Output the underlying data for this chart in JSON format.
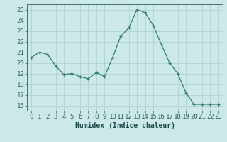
{
  "x": [
    0,
    1,
    2,
    3,
    4,
    5,
    6,
    7,
    8,
    9,
    10,
    11,
    12,
    13,
    14,
    15,
    16,
    17,
    18,
    19,
    20,
    21,
    22,
    23
  ],
  "y": [
    20.5,
    21.0,
    20.8,
    19.7,
    18.9,
    19.0,
    18.7,
    18.5,
    19.1,
    18.7,
    20.5,
    22.5,
    23.3,
    25.0,
    24.7,
    23.5,
    21.7,
    20.0,
    19.0,
    17.2,
    16.1,
    16.1,
    16.1,
    16.1
  ],
  "ylim": [
    15.5,
    25.5
  ],
  "yticks": [
    16,
    17,
    18,
    19,
    20,
    21,
    22,
    23,
    24,
    25
  ],
  "xticks": [
    0,
    1,
    2,
    3,
    4,
    5,
    6,
    7,
    8,
    9,
    10,
    11,
    12,
    13,
    14,
    15,
    16,
    17,
    18,
    19,
    20,
    21,
    22,
    23
  ],
  "xlabel": "Humidex (Indice chaleur)",
  "line_color": "#2d7d6f",
  "marker": "+",
  "bg_color": "#cce8e8",
  "grid_color": "#aacece",
  "tick_color": "#2d6060",
  "label_color": "#1a4a4a",
  "xlabel_fontsize": 7,
  "tick_fontsize": 6.5
}
